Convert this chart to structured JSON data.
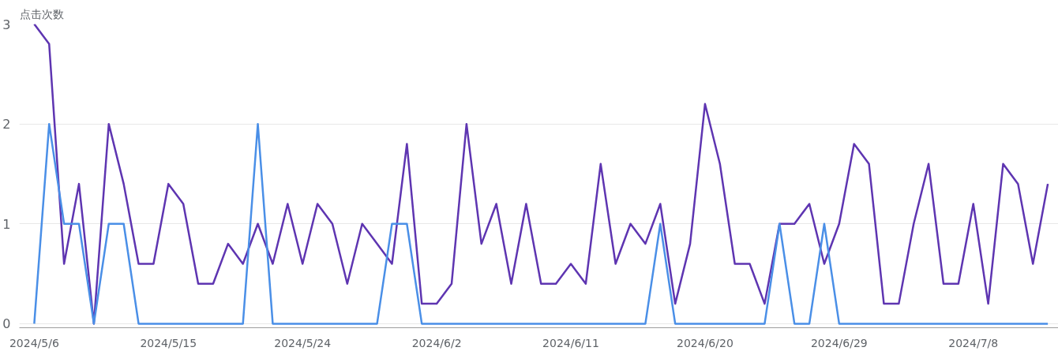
{
  "chart_data": {
    "type": "line",
    "ylabel": "点击次数",
    "x": [
      "2024-05-06",
      "2024-05-07",
      "2024-05-08",
      "2024-05-09",
      "2024-05-10",
      "2024-05-11",
      "2024-05-12",
      "2024-05-13",
      "2024-05-14",
      "2024-05-15",
      "2024-05-16",
      "2024-05-17",
      "2024-05-18",
      "2024-05-19",
      "2024-05-20",
      "2024-05-21",
      "2024-05-22",
      "2024-05-23",
      "2024-05-24",
      "2024-05-25",
      "2024-05-26",
      "2024-05-27",
      "2024-05-28",
      "2024-05-29",
      "2024-05-30",
      "2024-05-31",
      "2024-06-01",
      "2024-06-02",
      "2024-06-03",
      "2024-06-04",
      "2024-06-05",
      "2024-06-06",
      "2024-06-07",
      "2024-06-08",
      "2024-06-09",
      "2024-06-10",
      "2024-06-11",
      "2024-06-12",
      "2024-06-13",
      "2024-06-14",
      "2024-06-15",
      "2024-06-16",
      "2024-06-17",
      "2024-06-18",
      "2024-06-19",
      "2024-06-20",
      "2024-06-21",
      "2024-06-22",
      "2024-06-23",
      "2024-06-24",
      "2024-06-25",
      "2024-06-26",
      "2024-06-27",
      "2024-06-28",
      "2024-06-29",
      "2024-06-30",
      "2024-07-01",
      "2024-07-02",
      "2024-07-03",
      "2024-07-04",
      "2024-07-05",
      "2024-07-06",
      "2024-07-07",
      "2024-07-08",
      "2024-07-09",
      "2024-07-10",
      "2024-07-11",
      "2024-07-12",
      "2024-07-13"
    ],
    "series": [
      {
        "color": "#5e35b1",
        "values": [
          3,
          2.8,
          0.6,
          1.4,
          0,
          2,
          1.4,
          0.6,
          0.6,
          1.4,
          1.2,
          0.4,
          0.4,
          0.8,
          0.6,
          1,
          0.6,
          1.2,
          0.6,
          1.2,
          1,
          0.4,
          1,
          0.8,
          0.6,
          1.8,
          0.2,
          0.2,
          0.4,
          2,
          0.8,
          1.2,
          0.4,
          1.2,
          0.4,
          0.4,
          0.6,
          0.4,
          1.6,
          0.6,
          1,
          0.8,
          1.2,
          0.2,
          0.8,
          2.2,
          1.6,
          0.6,
          0.6,
          0.2,
          1,
          1,
          1.2,
          0.6,
          1,
          1.8,
          1.6,
          0.2,
          0.2,
          1,
          1.6,
          0.4,
          0.4,
          1.2,
          0.2,
          1.6,
          1.4,
          0.6,
          1.4
        ]
      },
      {
        "color": "#4a8fe7",
        "values": [
          0,
          2,
          1,
          1,
          0,
          1,
          1,
          0,
          0,
          0,
          0,
          0,
          0,
          0,
          0,
          2,
          0,
          0,
          0,
          0,
          0,
          0,
          0,
          0,
          1,
          1,
          0,
          0,
          0,
          0,
          0,
          0,
          0,
          0,
          0,
          0,
          0,
          0,
          0,
          0,
          0,
          0,
          1,
          0,
          0,
          0,
          0,
          0,
          0,
          0,
          1,
          0,
          0,
          1,
          0,
          0,
          0,
          0,
          0,
          0,
          0,
          0,
          0,
          0,
          0,
          0,
          0,
          0,
          0
        ]
      }
    ],
    "xlim": [
      "2024-05-05",
      "2024-07-13T17:00"
    ],
    "xticks": [
      {
        "value": "2024-05-06",
        "label": "2024/5/6"
      },
      {
        "value": "2024-05-15",
        "label": "2024/5/15"
      },
      {
        "value": "2024-05-24",
        "label": "2024/5/24"
      },
      {
        "value": "2024-06-02",
        "label": "2024/6/2"
      },
      {
        "value": "2024-06-11",
        "label": "2024/6/11"
      },
      {
        "value": "2024-06-20",
        "label": "2024/6/20"
      },
      {
        "value": "2024-06-29",
        "label": "2024/6/29"
      },
      {
        "value": "2024-07-08",
        "label": "2024/7/8"
      }
    ],
    "ylim": [
      -0.04,
      3
    ],
    "yticks": [
      0,
      1,
      2,
      3
    ],
    "grid": "y"
  }
}
